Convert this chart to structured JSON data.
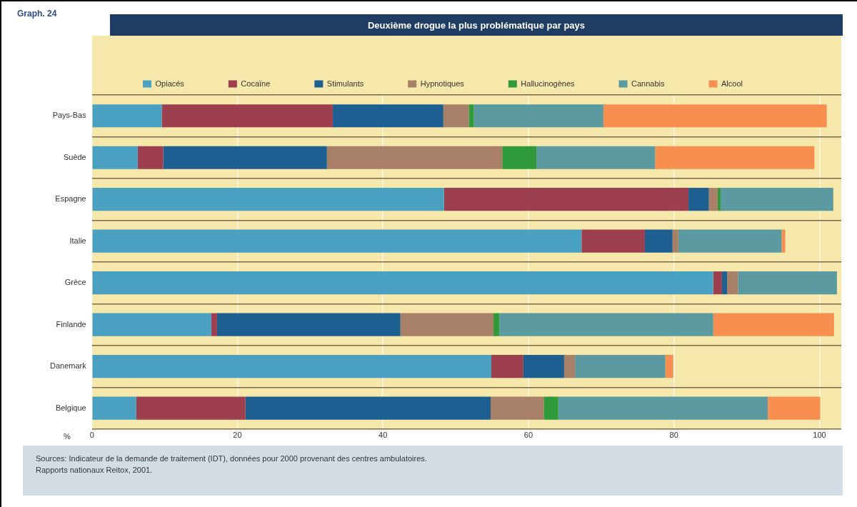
{
  "chart_data": {
    "type": "bar",
    "orientation": "horizontal",
    "stacked": true,
    "title": "Deuxième drogue la plus problématique par pays",
    "xlabel": "%",
    "annotations": [
      "Graph. 24",
      "Sources:  Indicateur de la demande de traitement (IDT), données pour 2000 provenant des centres ambulatoires.\nRapports nationaux Reitox, 2001."
    ],
    "categories": [
      "Pays-Bas",
      "Suède",
      "Espagne",
      "Italie",
      "Grèce",
      "Finlande",
      "Danemark",
      "Belgique"
    ],
    "series": [
      {
        "name": "Opiacés",
        "color": "#4aa0c0",
        "values": [
          9.6,
          6.3,
          48.4,
          67.3,
          85.4,
          16.4,
          54.9,
          6.1
        ]
      },
      {
        "name": "Cocaïne",
        "color": "#9e3f50",
        "values": [
          23.5,
          3.5,
          33.6,
          8.7,
          1.2,
          0.8,
          4.4,
          15.0
        ]
      },
      {
        "name": "Stimulants",
        "color": "#1d5f91",
        "values": [
          15.2,
          22.5,
          2.8,
          3.8,
          0.7,
          25.2,
          5.6,
          33.7
        ]
      },
      {
        "name": "Hypnotiques",
        "color": "#a88068",
        "values": [
          3.5,
          24.1,
          1.2,
          0.8,
          1.5,
          12.8,
          1.5,
          7.3
        ]
      },
      {
        "name": "Hallucinogènes",
        "color": "#2e9a3a",
        "values": [
          0.7,
          4.7,
          0.4,
          0,
          0,
          0.8,
          0,
          2.0
        ]
      },
      {
        "name": "Cannabis",
        "color": "#5a9aa0",
        "values": [
          17.8,
          16.3,
          15.5,
          14.2,
          13.6,
          29.4,
          12.4,
          28.8
        ]
      },
      {
        "name": "Alcool",
        "color": "#f68f4f",
        "values": [
          30.7,
          21.9,
          0,
          0.5,
          0,
          16.6,
          1.1,
          7.2
        ]
      }
    ],
    "xlim": [
      0,
      103
    ],
    "xticks": [
      0,
      20,
      40,
      60,
      80,
      100
    ],
    "grid": true,
    "legend": "top"
  }
}
